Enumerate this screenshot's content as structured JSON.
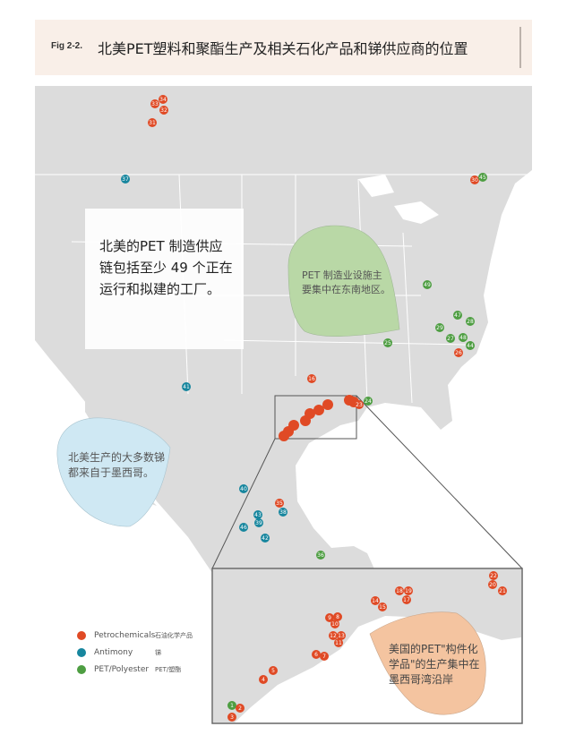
{
  "header": {
    "fig_label": "Fig 2-2.",
    "title": "北美PET塑料和聚酯生产及相关石化产品和锑供应商的位置"
  },
  "callouts": {
    "main": "北美的PET 制造供应链包括至少 49 个正在运行和拟建的工厂。",
    "southeast": "PET 制造业设施主要集中在东南地区。",
    "mexico": "北美生产的大多数锑都来自于墨西哥。",
    "gulf": "美国的PET\"构件化学品\"的生产集中在墨西哥湾沿岸"
  },
  "legend": [
    {
      "label": "Petrochemicals",
      "label_zh": "石油化学产品",
      "color": "#e04a25"
    },
    {
      "label": "Antimony",
      "label_zh": "锑",
      "color": "#17869e"
    },
    {
      "label": "PET/Polyester",
      "label_zh": "PET/塑酯",
      "color": "#4e9e42"
    }
  ],
  "colors": {
    "petrochemicals": "#e04a25",
    "antimony": "#17869e",
    "pet": "#4e9e42",
    "land": "#dcdcdc",
    "green_zone": "#b9d8a6",
    "blue_zone": "#cfe8f3",
    "orange_zone": "#f4c4a0"
  },
  "markers": [
    {
      "id": "34",
      "type": "petrochemicals"
    },
    {
      "id": "33",
      "type": "petrochemicals"
    },
    {
      "id": "32",
      "type": "petrochemicals"
    },
    {
      "id": "31",
      "type": "petrochemicals"
    },
    {
      "id": "37",
      "type": "antimony"
    },
    {
      "id": "30",
      "type": "petrochemicals"
    },
    {
      "id": "45",
      "type": "pet"
    },
    {
      "id": "49",
      "type": "pet"
    },
    {
      "id": "47",
      "type": "pet"
    },
    {
      "id": "28",
      "type": "pet"
    },
    {
      "id": "29",
      "type": "pet"
    },
    {
      "id": "27",
      "type": "pet"
    },
    {
      "id": "48",
      "type": "pet"
    },
    {
      "id": "44",
      "type": "pet"
    },
    {
      "id": "26",
      "type": "petrochemicals"
    },
    {
      "id": "25",
      "type": "pet"
    },
    {
      "id": "16",
      "type": "petrochemicals"
    },
    {
      "id": "24",
      "type": "pet"
    },
    {
      "id": "23",
      "type": "petrochemicals"
    },
    {
      "id": "41",
      "type": "antimony"
    },
    {
      "id": "40",
      "type": "antimony"
    },
    {
      "id": "35",
      "type": "petrochemicals"
    },
    {
      "id": "38",
      "type": "antimony"
    },
    {
      "id": "43",
      "type": "antimony"
    },
    {
      "id": "39",
      "type": "antimony"
    },
    {
      "id": "46",
      "type": "antimony"
    },
    {
      "id": "42",
      "type": "antimony"
    },
    {
      "id": "36",
      "type": "pet"
    }
  ],
  "inset_markers": [
    {
      "id": "22",
      "type": "petrochemicals"
    },
    {
      "id": "20",
      "type": "petrochemicals"
    },
    {
      "id": "21",
      "type": "petrochemicals"
    },
    {
      "id": "18",
      "type": "petrochemicals"
    },
    {
      "id": "19",
      "type": "petrochemicals"
    },
    {
      "id": "17",
      "type": "petrochemicals"
    },
    {
      "id": "14",
      "type": "petrochemicals"
    },
    {
      "id": "15",
      "type": "petrochemicals"
    },
    {
      "id": "9",
      "type": "petrochemicals"
    },
    {
      "id": "8",
      "type": "petrochemicals"
    },
    {
      "id": "10",
      "type": "petrochemicals"
    },
    {
      "id": "12",
      "type": "petrochemicals"
    },
    {
      "id": "13",
      "type": "petrochemicals"
    },
    {
      "id": "11",
      "type": "petrochemicals"
    },
    {
      "id": "6",
      "type": "petrochemicals"
    },
    {
      "id": "7",
      "type": "petrochemicals"
    },
    {
      "id": "5",
      "type": "petrochemicals"
    },
    {
      "id": "4",
      "type": "petrochemicals"
    },
    {
      "id": "1",
      "type": "pet"
    },
    {
      "id": "2",
      "type": "petrochemicals"
    },
    {
      "id": "3",
      "type": "petrochemicals"
    }
  ]
}
